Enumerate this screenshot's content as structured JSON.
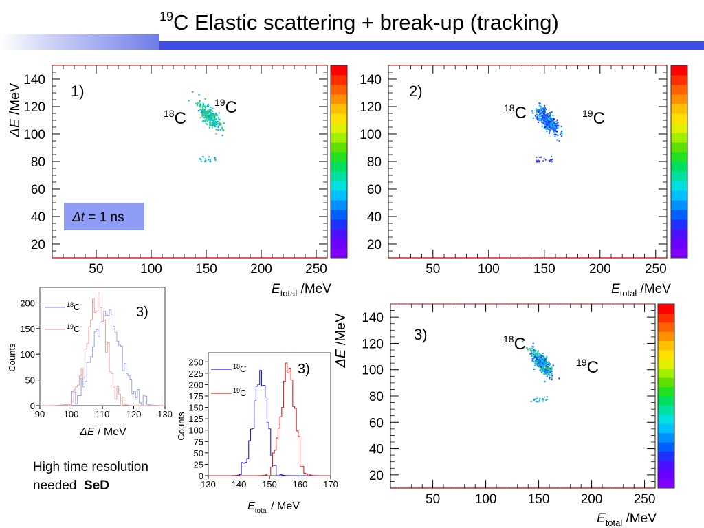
{
  "title": {
    "sup": "19",
    "text": "C Elastic scattering + break-up (tracking)"
  },
  "note": {
    "line1": "High time resolution",
    "line2a": "needed",
    "line2b": "SeD"
  },
  "colors": {
    "banner": "#3d4fdc",
    "hist_18C": "#1a1adb",
    "hist_19C": "#e02020",
    "hist_18C_faint": "#9aa0ef",
    "hist_19C_faint": "#f0a0a0",
    "dt_box": "#8f9cf5"
  },
  "scatter_panels": [
    {
      "panel_label": "1)",
      "y_title": "ΔE /MeV",
      "x_title_main": "E",
      "x_title_sub": "total",
      "x_title_unit": " /MeV",
      "label_18": "18",
      "label_19": "19",
      "label_C": "C",
      "dt_label_sym": "Δt",
      "dt_label_rest": " = 1 ns",
      "palette": "cyan"
    },
    {
      "panel_label": "2)",
      "x_title_main": "E",
      "x_title_sub": "total",
      "x_title_unit": " /MeV",
      "label_18": "18",
      "label_19": "19",
      "label_C": "C",
      "palette": "blue"
    },
    {
      "panel_label": "3)",
      "y_title": "ΔE /MeV",
      "x_title_main": "E",
      "x_title_sub": "total",
      "x_title_unit": " /MeV",
      "label_18": "18",
      "label_19": "19",
      "label_C": "C",
      "palette": "mixed"
    }
  ],
  "hist_panels": [
    {
      "panel_label": "3)",
      "y_title": "Counts",
      "x_title_main": "ΔE",
      "x_title_unit": " / MeV",
      "legend_18": "18",
      "legend_19": "19",
      "legend_C": "C"
    },
    {
      "panel_label": "3)",
      "y_title": "Counts",
      "x_title_main": "E",
      "x_title_sub": "total",
      "x_title_unit": " / MeV",
      "legend_18": "18",
      "legend_19": "19",
      "legend_C": "C"
    }
  ],
  "chart_data": [
    {
      "type": "heatmap",
      "title": "1)",
      "xlabel": "Etotal /MeV",
      "ylabel": "ΔE /MeV",
      "xlim": [
        10,
        260
      ],
      "ylim": [
        10,
        150
      ],
      "x_ticks": [
        50,
        100,
        150,
        200,
        250
      ],
      "y_ticks": [
        20,
        40,
        60,
        80,
        100,
        120,
        140
      ],
      "clusters": [
        {
          "name": "18C",
          "x_center": 152,
          "y_center": 114,
          "x_spread": 6,
          "y_spread": 6
        },
        {
          "name": "breakup",
          "x_center": 150,
          "y_center": 82,
          "x_spread": 8,
          "y_spread": 2
        }
      ],
      "annotation": "Δt = 1 ns"
    },
    {
      "type": "heatmap",
      "title": "2)",
      "xlabel": "Etotal /MeV",
      "ylabel": "ΔE /MeV",
      "xlim": [
        10,
        260
      ],
      "ylim": [
        10,
        150
      ],
      "x_ticks": [
        50,
        100,
        150,
        200,
        250
      ],
      "y_ticks": [
        20,
        40,
        60,
        80,
        100,
        120,
        140
      ],
      "clusters": [
        {
          "name": "18C",
          "x_center": 152,
          "y_center": 110,
          "x_spread": 6,
          "y_spread": 6
        },
        {
          "name": "breakup",
          "x_center": 150,
          "y_center": 82,
          "x_spread": 8,
          "y_spread": 2
        }
      ]
    },
    {
      "type": "heatmap",
      "title": "3)",
      "xlabel": "Etotal /MeV",
      "ylabel": "ΔE /MeV",
      "xlim": [
        10,
        260
      ],
      "ylim": [
        10,
        150
      ],
      "x_ticks": [
        50,
        100,
        150,
        200,
        250
      ],
      "y_ticks": [
        20,
        40,
        60,
        80,
        100,
        120,
        140
      ],
      "clusters": [
        {
          "name": "18C",
          "x_center": 152,
          "y_center": 106,
          "x_spread": 6,
          "y_spread": 6
        },
        {
          "name": "breakup",
          "x_center": 150,
          "y_center": 78,
          "x_spread": 8,
          "y_spread": 2
        }
      ]
    },
    {
      "type": "line",
      "title": "3)",
      "xlabel": "ΔE / MeV",
      "ylabel": "Counts",
      "xlim": [
        90,
        130
      ],
      "ylim": [
        0,
        230
      ],
      "x_ticks": [
        90,
        100,
        110,
        120,
        130
      ],
      "y_ticks": [
        0,
        50,
        100,
        150,
        200
      ],
      "series": [
        {
          "name": "18C",
          "mean": 111,
          "sigma": 4.5,
          "peak": 175
        },
        {
          "name": "19C",
          "mean": 108,
          "sigma": 3.0,
          "peak": 205
        }
      ]
    },
    {
      "type": "line",
      "title": "3)",
      "xlabel": "Etotal / MeV",
      "ylabel": "Counts",
      "xlim": [
        130,
        170
      ],
      "ylim": [
        0,
        270
      ],
      "x_ticks": [
        130,
        140,
        150,
        160,
        170
      ],
      "y_ticks": [
        0,
        25,
        50,
        75,
        100,
        125,
        150,
        175,
        200,
        225,
        250
      ],
      "series": [
        {
          "name": "18C",
          "mean": 146.8,
          "sigma": 2.2,
          "peak": 228
        },
        {
          "name": "19C",
          "mean": 155.8,
          "sigma": 2.3,
          "peak": 232
        }
      ]
    }
  ]
}
